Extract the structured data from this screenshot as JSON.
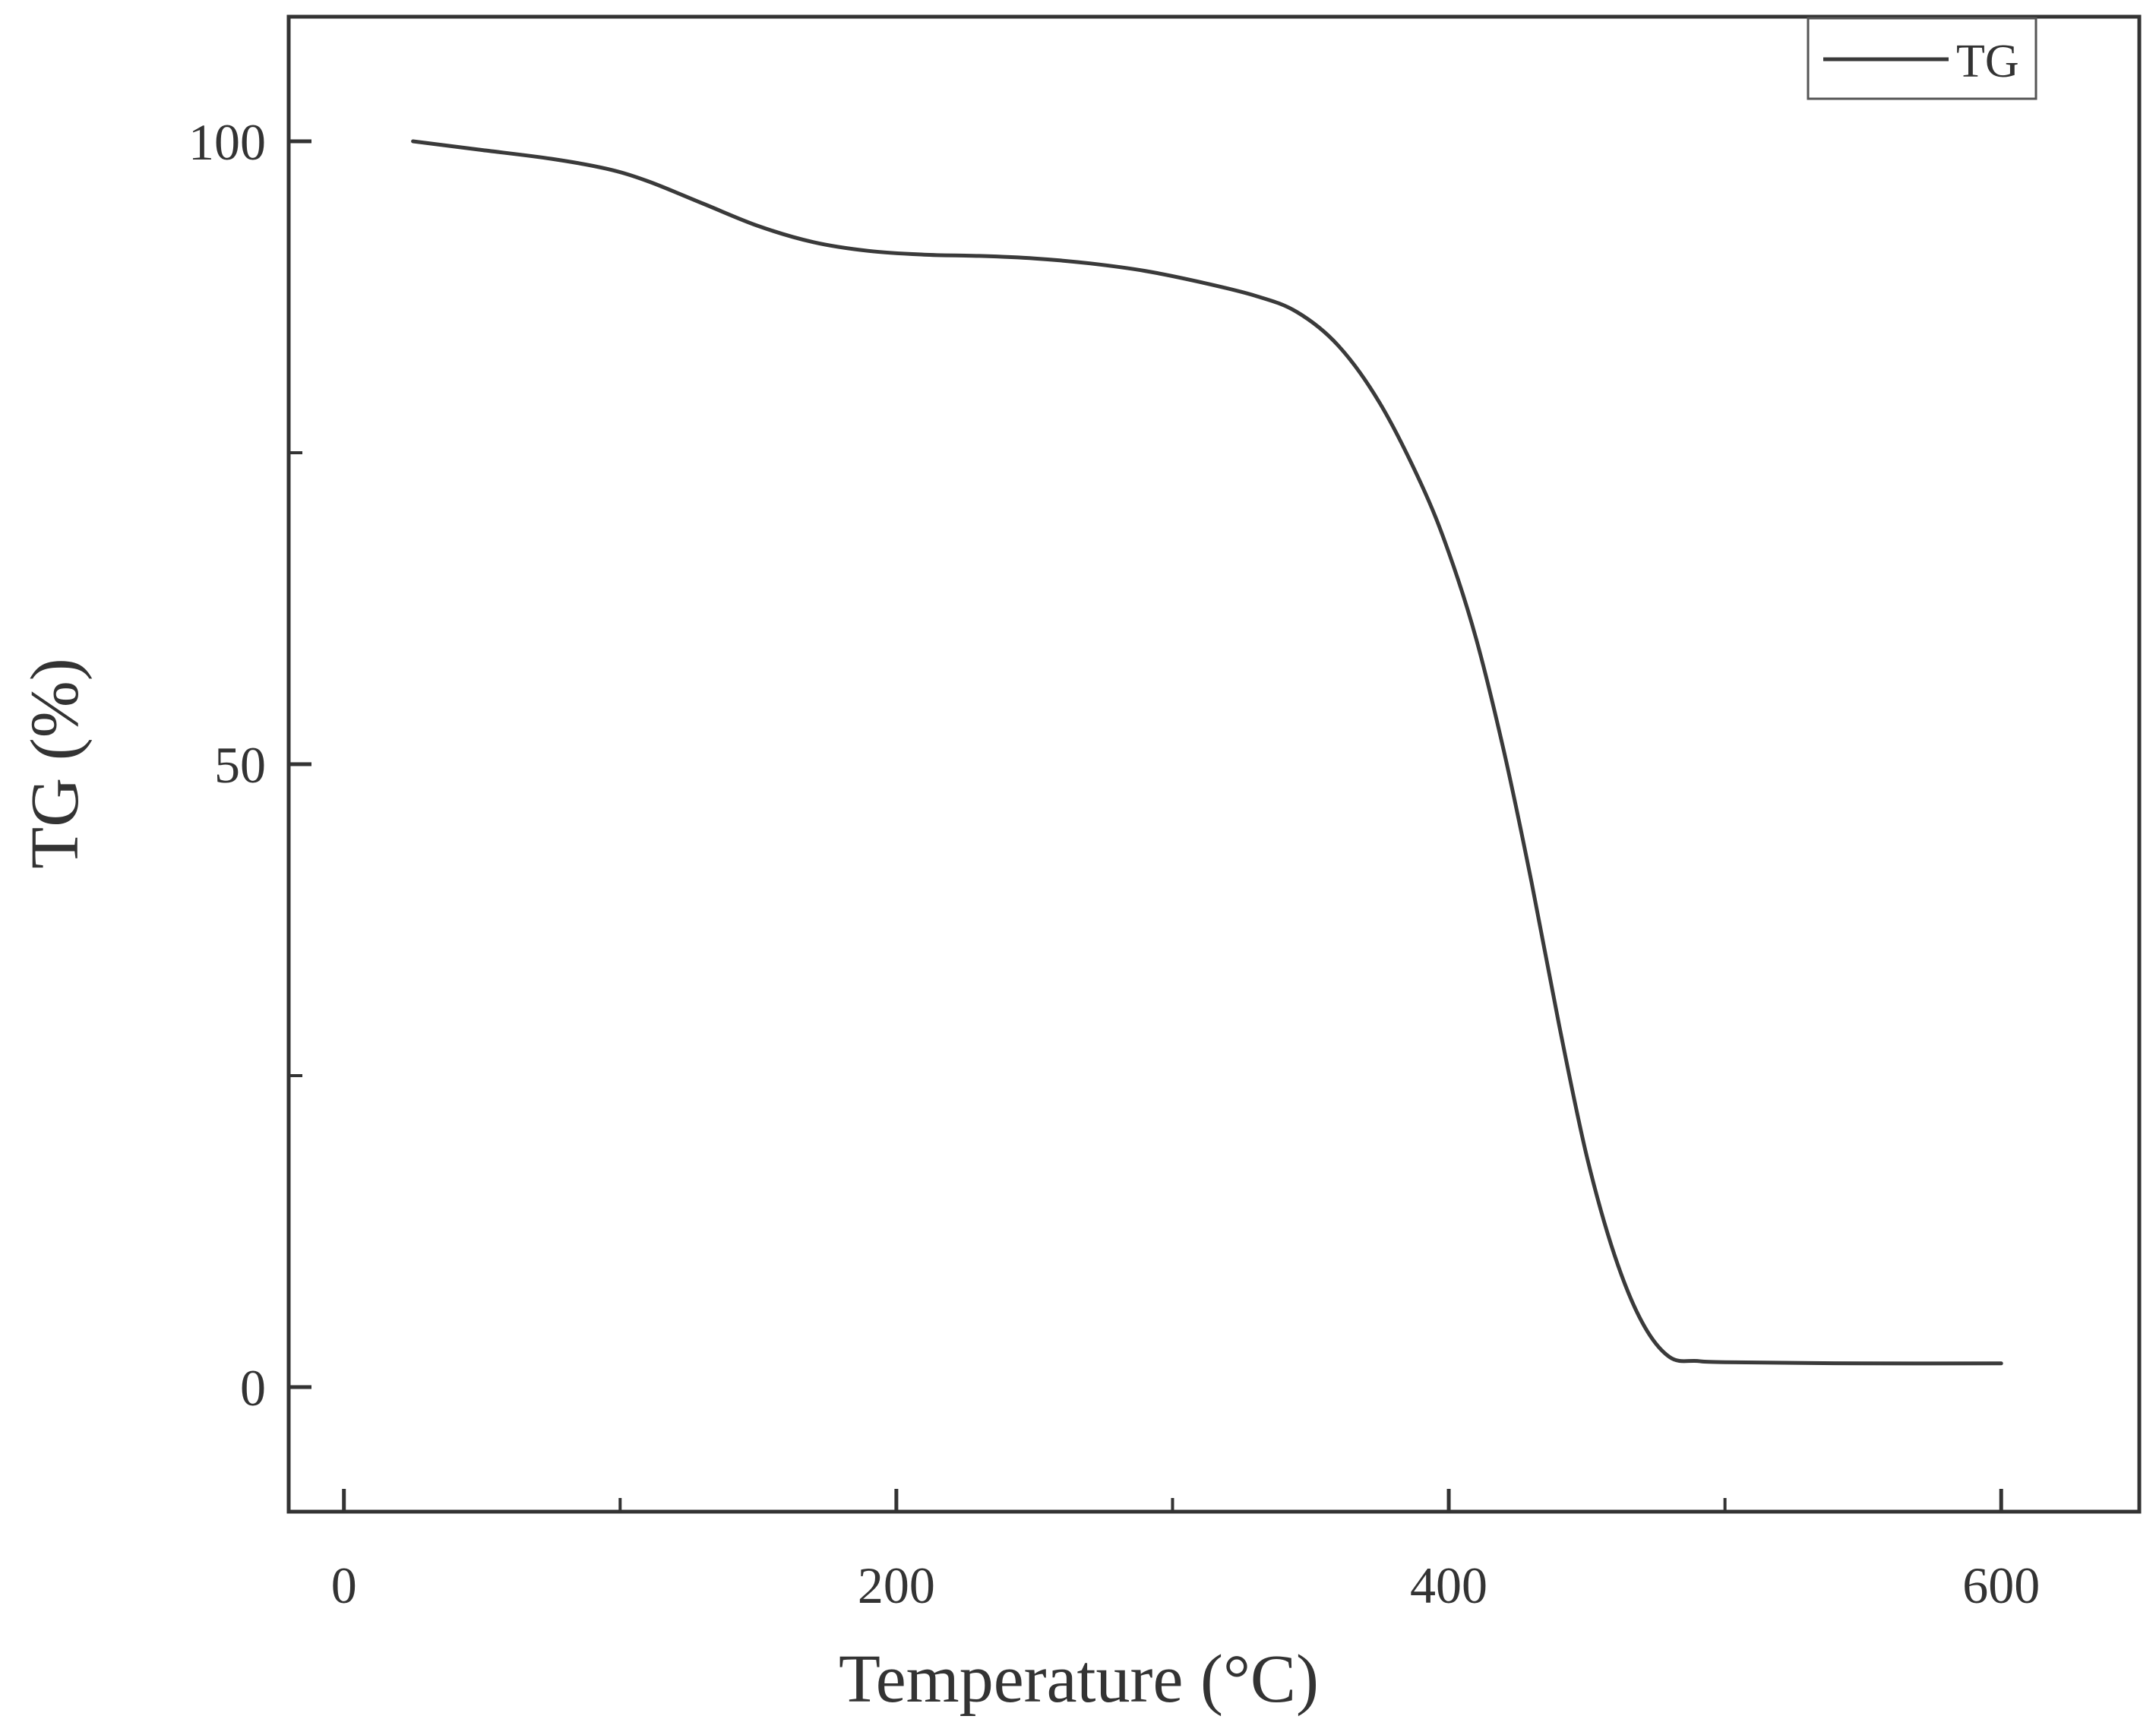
{
  "chart_data": {
    "type": "line",
    "title": "",
    "xlabel": "Temperature (°C)",
    "ylabel": "TG (%)",
    "xlim": [
      -20,
      650
    ],
    "ylim": [
      -10,
      110
    ],
    "x_ticks": [
      0,
      200,
      400,
      600
    ],
    "x_minor_ticks": [
      100,
      300,
      500
    ],
    "y_ticks": [
      0,
      50,
      100
    ],
    "y_minor_ticks": [
      25,
      75
    ],
    "grid": false,
    "legend": {
      "placement": "top-right",
      "entries": [
        "TG"
      ]
    },
    "line_color": "#3a3a3a",
    "series": [
      {
        "name": "TG",
        "x": [
          25,
          50,
          75,
          95,
          110,
          130,
          150,
          170,
          190,
          210,
          230,
          250,
          270,
          290,
          310,
          330,
          345,
          360,
          375,
          390,
          400,
          410,
          420,
          430,
          440,
          450,
          460,
          470,
          480,
          490,
          500,
          550,
          600
        ],
        "y": [
          100,
          99.3,
          98.6,
          97.8,
          96.8,
          95,
          93.2,
          91.9,
          91.2,
          90.9,
          90.8,
          90.6,
          90.2,
          89.6,
          88.7,
          87.6,
          86.3,
          83.6,
          79,
          72.5,
          67,
          60,
          51,
          40.5,
          29,
          18.5,
          10.6,
          5.2,
          2.4,
          2.1,
          2,
          1.9,
          1.9
        ]
      }
    ]
  }
}
